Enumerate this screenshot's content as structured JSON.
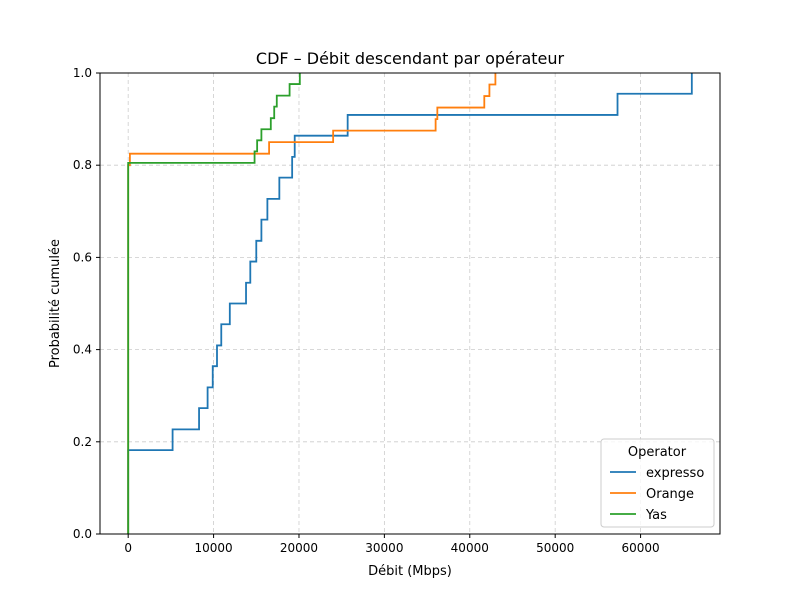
{
  "chart_data": {
    "type": "line",
    "step": "post",
    "title": "CDF – Débit descendant par opérateur",
    "xlabel": "Débit (Mbps)",
    "ylabel": "Probabilité cumulée",
    "xlim": [
      -3300,
      69300
    ],
    "ylim": [
      0,
      1
    ],
    "xticks": [
      0,
      10000,
      20000,
      30000,
      40000,
      50000,
      60000
    ],
    "xtick_labels": [
      "0",
      "10000",
      "20000",
      "30000",
      "40000",
      "50000",
      "60000"
    ],
    "yticks": [
      0,
      0.2,
      0.4,
      0.6,
      0.8,
      1.0
    ],
    "ytick_labels": [
      "0.0",
      "0.2",
      "0.4",
      "0.6",
      "0.8",
      "1.0"
    ],
    "grid": true,
    "legend": {
      "title": "Operator",
      "position": "lower-right"
    },
    "series": [
      {
        "name": "expresso",
        "color": "#1f77b4",
        "points": [
          [
            0,
            0
          ],
          [
            0,
            0.182
          ],
          [
            5200,
            0.182
          ],
          [
            5200,
            0.227
          ],
          [
            8300,
            0.227
          ],
          [
            8300,
            0.273
          ],
          [
            9300,
            0.273
          ],
          [
            9300,
            0.318
          ],
          [
            9900,
            0.318
          ],
          [
            9900,
            0.364
          ],
          [
            10400,
            0.364
          ],
          [
            10400,
            0.409
          ],
          [
            10900,
            0.409
          ],
          [
            10900,
            0.455
          ],
          [
            11900,
            0.455
          ],
          [
            11900,
            0.5
          ],
          [
            13800,
            0.5
          ],
          [
            13800,
            0.545
          ],
          [
            14300,
            0.545
          ],
          [
            14300,
            0.591
          ],
          [
            15000,
            0.591
          ],
          [
            15000,
            0.636
          ],
          [
            15600,
            0.636
          ],
          [
            15600,
            0.682
          ],
          [
            16300,
            0.682
          ],
          [
            16300,
            0.727
          ],
          [
            17700,
            0.727
          ],
          [
            17700,
            0.773
          ],
          [
            19200,
            0.773
          ],
          [
            19200,
            0.818
          ],
          [
            19500,
            0.818
          ],
          [
            19500,
            0.864
          ],
          [
            25700,
            0.864
          ],
          [
            25700,
            0.909
          ],
          [
            57300,
            0.909
          ],
          [
            57300,
            0.955
          ],
          [
            66000,
            0.955
          ],
          [
            66000,
            1.0
          ]
        ]
      },
      {
        "name": "Orange",
        "color": "#ff7f0e",
        "points": [
          [
            0,
            0
          ],
          [
            0,
            0.8
          ],
          [
            200,
            0.8
          ],
          [
            200,
            0.825
          ],
          [
            16500,
            0.825
          ],
          [
            16500,
            0.85
          ],
          [
            24000,
            0.85
          ],
          [
            24000,
            0.875
          ],
          [
            36000,
            0.875
          ],
          [
            36000,
            0.9
          ],
          [
            36200,
            0.9
          ],
          [
            36200,
            0.925
          ],
          [
            41700,
            0.925
          ],
          [
            41700,
            0.95
          ],
          [
            42300,
            0.95
          ],
          [
            42300,
            0.975
          ],
          [
            43000,
            0.975
          ],
          [
            43000,
            1.0
          ]
        ]
      },
      {
        "name": "Yas",
        "color": "#2ca02c",
        "points": [
          [
            0,
            0
          ],
          [
            0,
            0.805
          ],
          [
            14800,
            0.805
          ],
          [
            14800,
            0.83
          ],
          [
            15100,
            0.83
          ],
          [
            15100,
            0.854
          ],
          [
            15600,
            0.854
          ],
          [
            15600,
            0.878
          ],
          [
            16700,
            0.878
          ],
          [
            16700,
            0.902
          ],
          [
            17100,
            0.902
          ],
          [
            17100,
            0.927
          ],
          [
            17400,
            0.927
          ],
          [
            17400,
            0.951
          ],
          [
            18900,
            0.951
          ],
          [
            18900,
            0.976
          ],
          [
            20100,
            0.976
          ],
          [
            20100,
            1.0
          ]
        ]
      }
    ]
  }
}
